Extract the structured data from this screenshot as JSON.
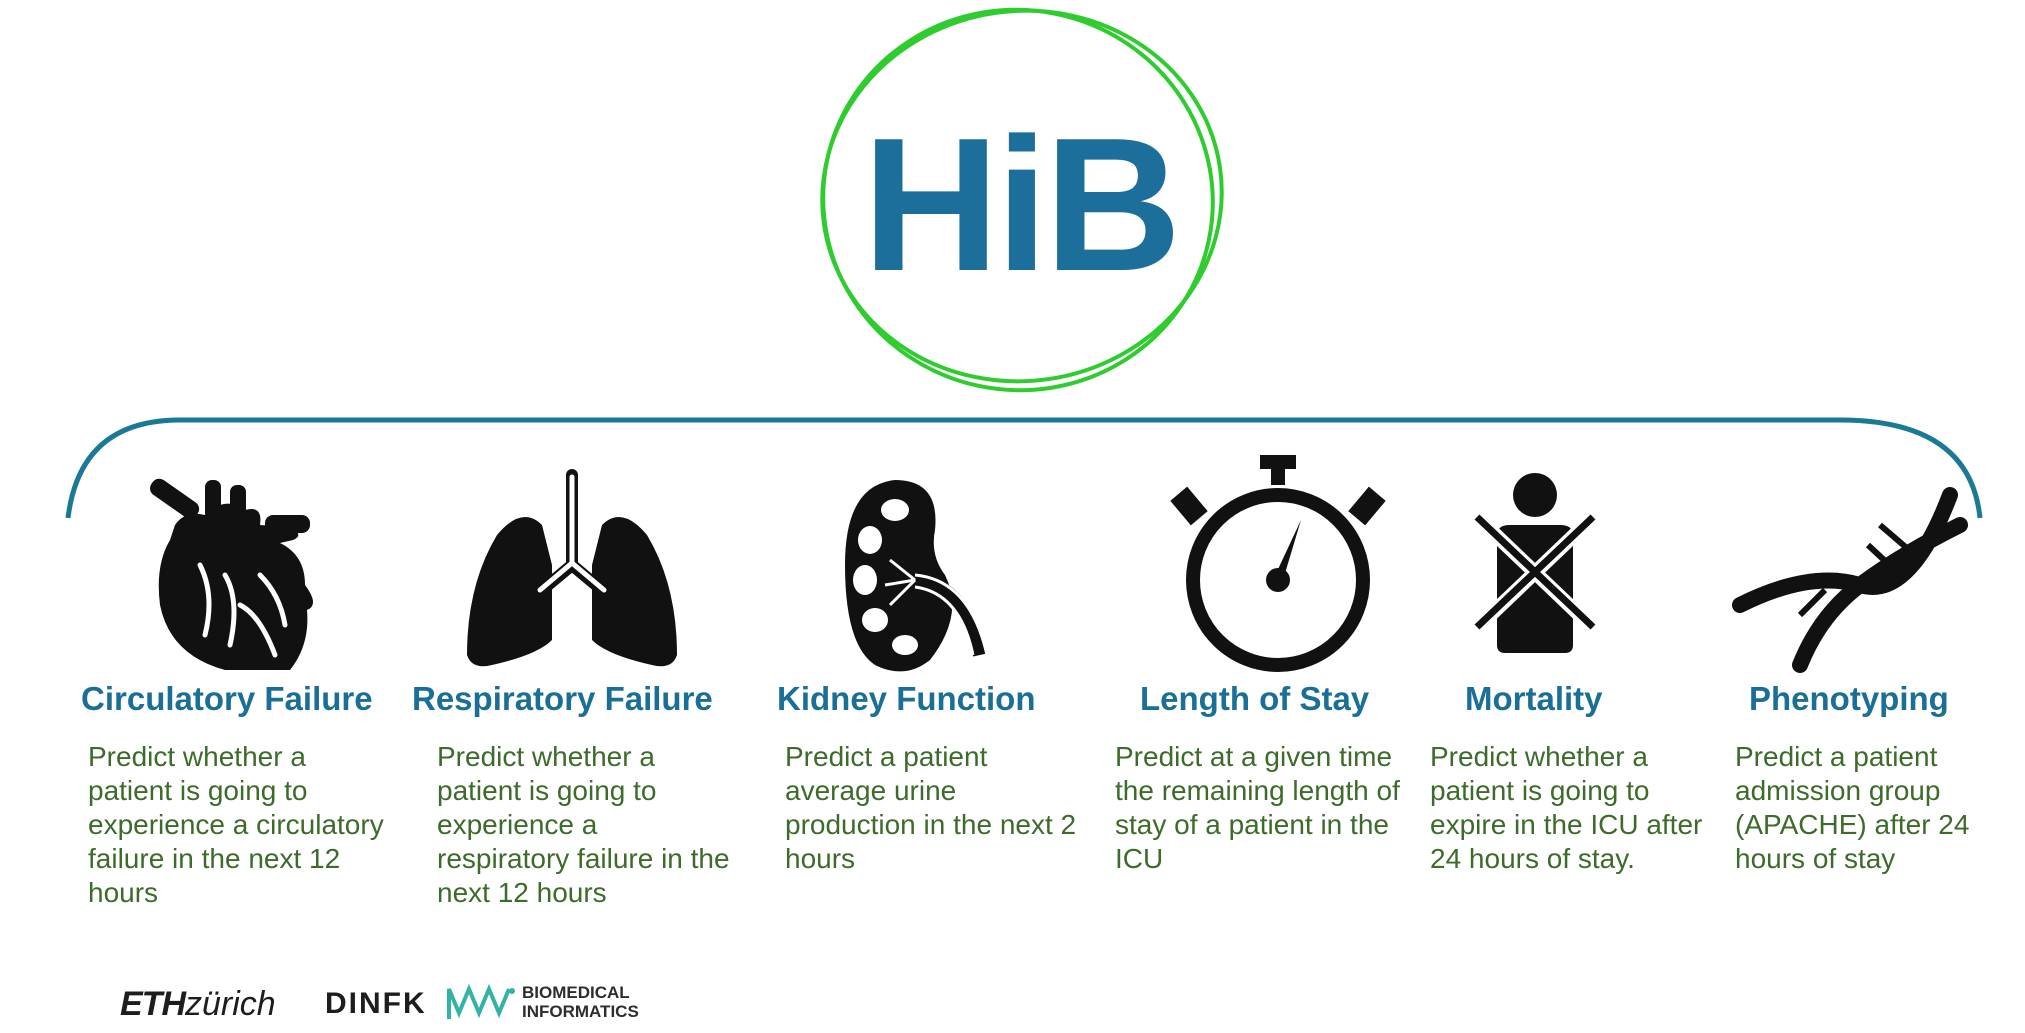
{
  "logo": {
    "text": "HiB",
    "color": "#1b6f9a",
    "ring_color": "#2ecc2e"
  },
  "bracket_color": "#1a7a96",
  "tasks": [
    {
      "icon": "heart-icon",
      "title": "Circulatory Failure",
      "description": "Predict whether a patient  is going to experience a circulatory failure in the next 12 hours"
    },
    {
      "icon": "lungs-icon",
      "title": "Respiratory Failure",
      "description": "Predict whether a patient  is going to experience a respiratory failure in the next 12 hours"
    },
    {
      "icon": "kidney-icon",
      "title": "Kidney Function",
      "description": "Predict a patient average urine production in the next 2 hours"
    },
    {
      "icon": "stopwatch-icon",
      "title": "Length of Stay",
      "description": "Predict at a given time the remaining length of stay of a patient in the ICU"
    },
    {
      "icon": "crossed-person-icon",
      "title": "Mortality",
      "description": "Predict whether a patient is going to expire in the ICU after 24 hours of stay."
    },
    {
      "icon": "dna-icon",
      "title": "Phenotyping",
      "description": "Predict a patient admission group (APACHE) after 24 hours of stay"
    }
  ],
  "footer": {
    "eth_bold": "ETH",
    "eth_rest": "zürich",
    "dinfk": "DINFK",
    "bmi_line1": "BIOMEDICAL",
    "bmi_line2": "INFORMATICS",
    "bmi_color": "#33b3a6"
  },
  "colors": {
    "title": "#1a6f96",
    "description": "#3c6b2a"
  }
}
